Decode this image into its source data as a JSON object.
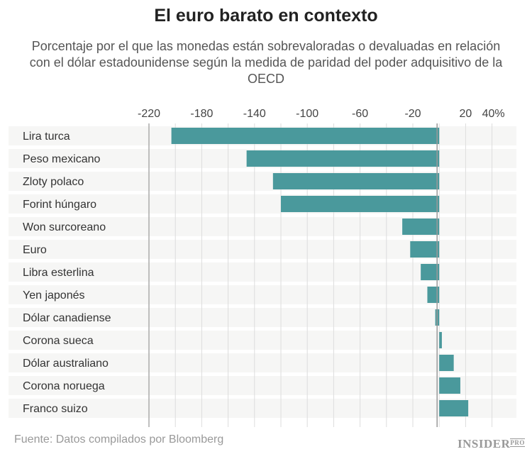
{
  "chart_data": {
    "type": "bar",
    "orientation": "horizontal",
    "title": "El euro barato en contexto",
    "subtitle": "Porcentaje por el que las monedas están sobrevaloradas o devaluadas en relación con el dólar estadounidense según la medida de paridad del poder adquisitivo de la OECD",
    "categories": [
      "Lira turca",
      "Peso mexicano",
      "Zloty polaco",
      "Forint húngaro",
      "Won surcoreano",
      "Euro",
      "Libra esterlina",
      "Yen japonés",
      "Dólar canadiense",
      "Corona sueca",
      "Dólar australiano",
      "Corona noruega",
      "Franco suizo"
    ],
    "values": [
      -203,
      -146,
      -126,
      -120,
      -28,
      -22,
      -14,
      -9,
      -3,
      2,
      11,
      16,
      22
    ],
    "xlim": [
      -220,
      40
    ],
    "tick_labels": [
      "-220",
      "-180",
      "-140",
      "-100",
      "-60",
      "-20",
      "20",
      "40%"
    ],
    "tick_values": [
      -220,
      -180,
      -140,
      -100,
      -60,
      -20,
      20,
      40
    ],
    "grid_step": 20,
    "grid": true,
    "bar_color": "#4a999c",
    "source": "Fuente: Datos compilados por Bloomberg"
  },
  "logo": {
    "text": "INSIDER",
    "suffix": "PRO"
  }
}
